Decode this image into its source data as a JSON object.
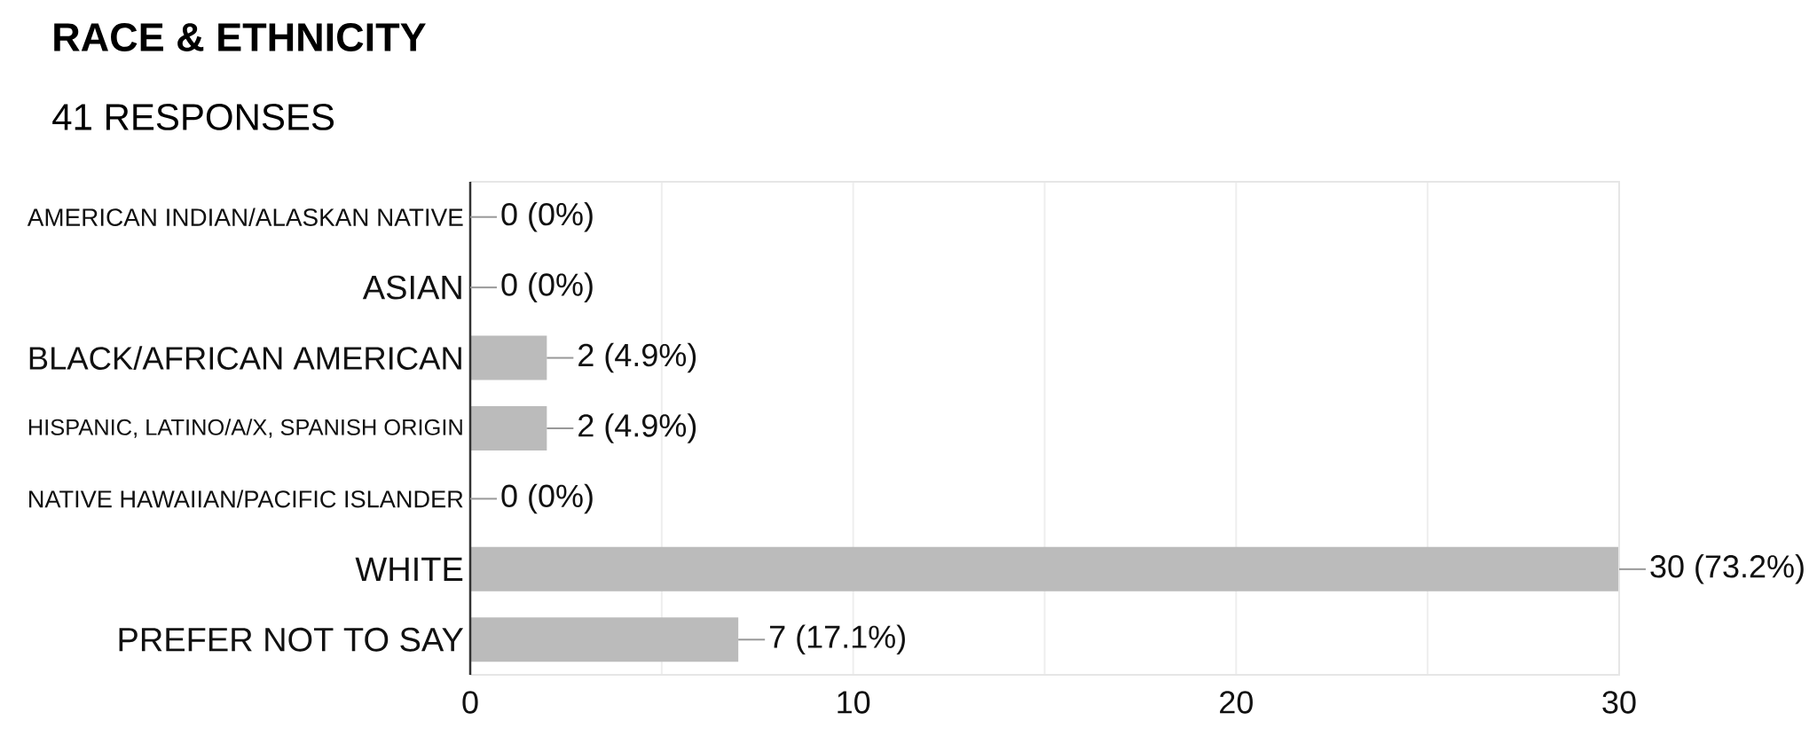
{
  "chart_data": {
    "type": "bar",
    "orientation": "horizontal",
    "title": "RACE & ETHNICITY",
    "subtitle": "41 RESPONSES",
    "categories": [
      "AMERICAN INDIAN/ALASKAN NATIVE",
      "ASIAN",
      "BLACK/AFRICAN AMERICAN",
      "HISPANIC, LATINO/A/X, SPANISH ORIGIN",
      "NATIVE HAWAIIAN/PACIFIC ISLANDER",
      "WHITE",
      "PREFER NOT TO SAY"
    ],
    "values": [
      0,
      0,
      2,
      2,
      0,
      30,
      7
    ],
    "value_labels": [
      "0 (0%)",
      "0 (0%)",
      "2 (4.9%)",
      "2 (4.9%)",
      "0 (0%)",
      "30 (73.2%)",
      "7 (17.1%)"
    ],
    "color": "#bbbbbb",
    "xlim": [
      0,
      30
    ],
    "xticks": [
      0,
      {
        "value": 5,
        "label": null
      },
      10,
      {
        "value": 15,
        "label": null
      },
      20,
      {
        "value": 25,
        "label": null
      },
      30
    ],
    "grid": "x"
  }
}
